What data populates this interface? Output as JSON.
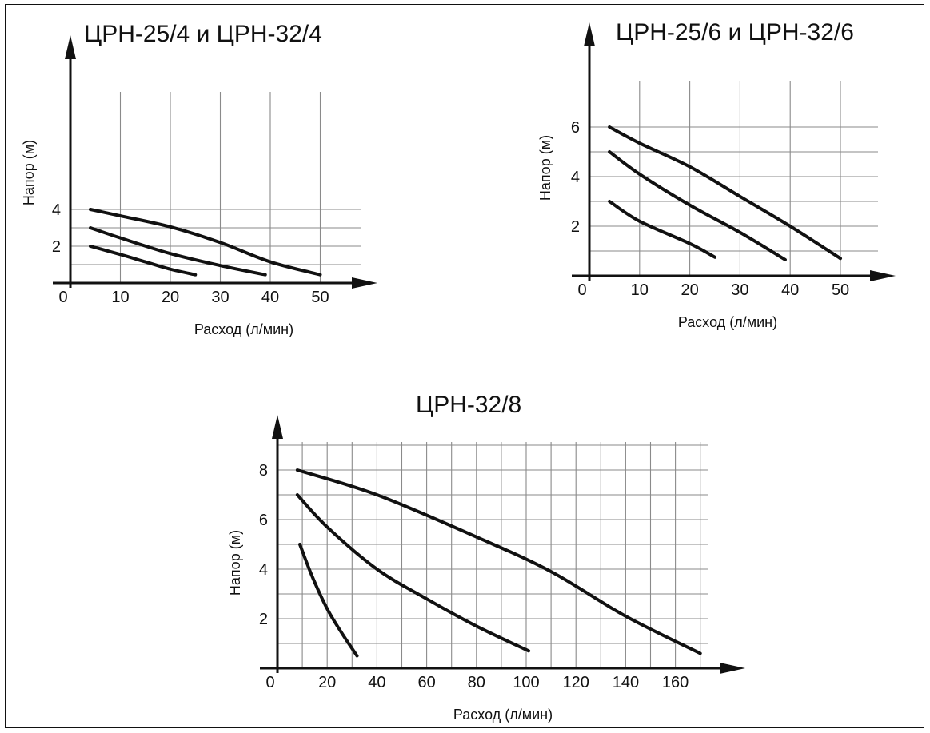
{
  "chart_data": [
    {
      "type": "line",
      "title": "ЦРН-25/4 и ЦРН-32/4",
      "xlabel": "Расход (л/мин)",
      "ylabel": "Напор (м)",
      "xlim": [
        0,
        55
      ],
      "ylim": [
        0,
        5.5
      ],
      "x_ticks": [
        "10",
        "20",
        "30",
        "40",
        "50"
      ],
      "y_ticks": [
        "2",
        "4"
      ],
      "origin_label": "0",
      "grid": true,
      "series": [
        {
          "values": [
            [
              4,
              2.0
            ],
            [
              10,
              1.55
            ],
            [
              15,
              1.15
            ],
            [
              20,
              0.75
            ],
            [
              25,
              0.45
            ]
          ]
        },
        {
          "values": [
            [
              4,
              3.0
            ],
            [
              10,
              2.45
            ],
            [
              20,
              1.6
            ],
            [
              30,
              0.95
            ],
            [
              39,
              0.45
            ]
          ]
        },
        {
          "values": [
            [
              4,
              4.0
            ],
            [
              10,
              3.65
            ],
            [
              20,
              3.05
            ],
            [
              30,
              2.2
            ],
            [
              40,
              1.15
            ],
            [
              50,
              0.45
            ]
          ]
        }
      ]
    },
    {
      "type": "line",
      "title": "ЦРН-25/6 и ЦРН-32/6",
      "xlabel": "Расход (л/мин)",
      "ylabel": "Напор (м)",
      "xlim": [
        0,
        55
      ],
      "ylim": [
        0,
        8
      ],
      "x_ticks": [
        "10",
        "20",
        "30",
        "40",
        "50"
      ],
      "y_ticks": [
        "2",
        "4",
        "6"
      ],
      "origin_label": "0",
      "grid": true,
      "series": [
        {
          "values": [
            [
              4,
              3.0
            ],
            [
              10,
              2.2
            ],
            [
              20,
              1.3
            ],
            [
              25,
              0.75
            ]
          ]
        },
        {
          "values": [
            [
              4,
              5.0
            ],
            [
              10,
              4.1
            ],
            [
              20,
              2.85
            ],
            [
              30,
              1.75
            ],
            [
              39,
              0.65
            ]
          ]
        },
        {
          "values": [
            [
              4,
              6.0
            ],
            [
              10,
              5.35
            ],
            [
              20,
              4.4
            ],
            [
              30,
              3.2
            ],
            [
              40,
              2.0
            ],
            [
              50,
              0.7
            ]
          ]
        }
      ]
    },
    {
      "type": "line",
      "title": "ЦРН-32/8",
      "xlabel": "Расход (л/мин)",
      "ylabel": "Напор (м)",
      "xlim": [
        0,
        175
      ],
      "ylim": [
        0,
        10
      ],
      "x_ticks": [
        "20",
        "40",
        "60",
        "80",
        "100",
        "120",
        "140",
        "160"
      ],
      "y_ticks": [
        "2",
        "4",
        "6",
        "8"
      ],
      "origin_label": "0",
      "grid": true,
      "series": [
        {
          "values": [
            [
              9,
              5.0
            ],
            [
              14,
              3.7
            ],
            [
              20,
              2.4
            ],
            [
              26,
              1.4
            ],
            [
              32,
              0.5
            ]
          ]
        },
        {
          "values": [
            [
              8,
              7.0
            ],
            [
              20,
              5.7
            ],
            [
              40,
              4.0
            ],
            [
              60,
              2.8
            ],
            [
              80,
              1.7
            ],
            [
              101,
              0.7
            ]
          ]
        },
        {
          "values": [
            [
              8,
              8.0
            ],
            [
              40,
              7.0
            ],
            [
              80,
              5.3
            ],
            [
              110,
              3.9
            ],
            [
              140,
              2.1
            ],
            [
              170,
              0.6
            ]
          ]
        }
      ]
    }
  ]
}
